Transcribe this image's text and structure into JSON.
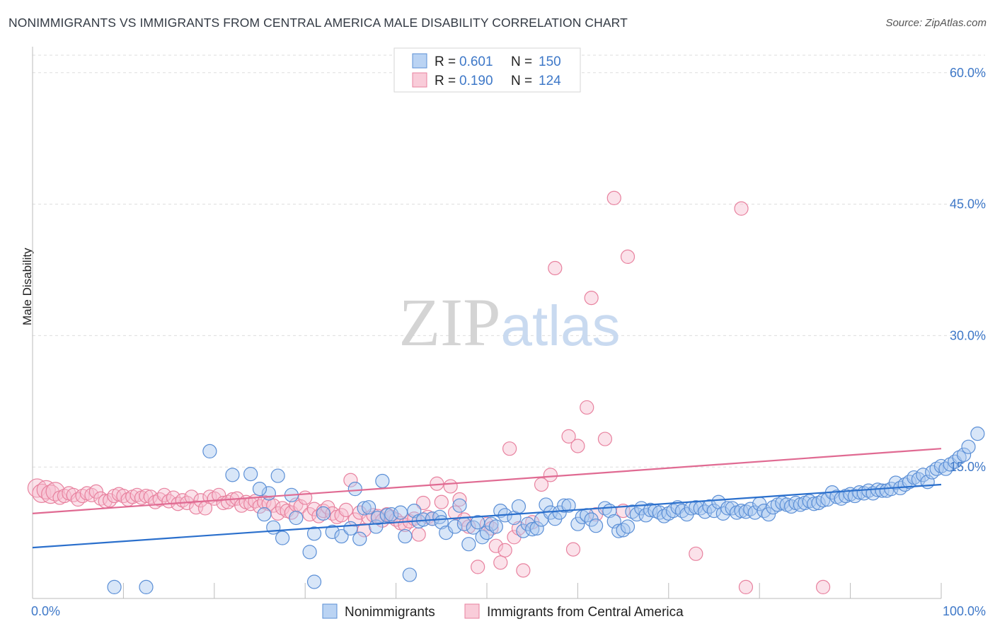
{
  "header": {
    "title": "NONIMMIGRANTS VS IMMIGRANTS FROM CENTRAL AMERICA MALE DISABILITY CORRELATION CHART",
    "source": "Source: ZipAtlas.com"
  },
  "chart_data": {
    "type": "scatter",
    "title": "NONIMMIGRANTS VS IMMIGRANTS FROM CENTRAL AMERICA MALE DISABILITY CORRELATION CHART",
    "xlabel": "",
    "ylabel": "Male Disability",
    "xlim": [
      0,
      100
    ],
    "ylim": [
      0,
      62
    ],
    "x_tick_labels": [
      "0.0%",
      "100.0%"
    ],
    "y_ticks": [
      15,
      30,
      45,
      60
    ],
    "y_tick_labels": [
      "15.0%",
      "30.0%",
      "45.0%",
      "60.0%"
    ],
    "grid": true,
    "legend_placement": "top-center",
    "watermark": "ZIPatlas",
    "colors": {
      "nonimmigrants_fill": "#a9c8f0",
      "nonimmigrants_stroke": "#5b8fd6",
      "nonimmigrants_line": "#2a6fcc",
      "immigrants_fill": "#f7bfd0",
      "immigrants_stroke": "#e8829f",
      "immigrants_line": "#e06a92",
      "tick_label": "#3e78c8",
      "grid": "#dddddd"
    },
    "stats": [
      {
        "r_label": "R =",
        "r_value": "0.601",
        "n_label": "N =",
        "n_value": "150"
      },
      {
        "r_label": "R =",
        "r_value": "0.190",
        "n_label": "N =",
        "n_value": "124"
      }
    ],
    "series": [
      {
        "name": "Nonimmigrants",
        "trend": {
          "x": [
            0,
            100
          ],
          "y": [
            5.8,
            13.0
          ]
        },
        "points": [
          [
            9,
            1.3
          ],
          [
            12.5,
            1.3
          ],
          [
            19.5,
            16.8
          ],
          [
            22,
            14.1
          ],
          [
            24,
            14.2
          ],
          [
            26,
            12.0
          ],
          [
            27,
            14.0
          ],
          [
            28.5,
            11.8
          ],
          [
            25,
            12.5
          ],
          [
            25.5,
            9.6
          ],
          [
            26.5,
            8.1
          ],
          [
            27.5,
            6.9
          ],
          [
            29,
            9.2
          ],
          [
            30.5,
            5.3
          ],
          [
            31,
            1.9
          ],
          [
            31,
            7.4
          ],
          [
            32,
            9.7
          ],
          [
            33,
            7.6
          ],
          [
            34,
            7.1
          ],
          [
            35,
            8.0
          ],
          [
            35.5,
            12.5
          ],
          [
            36,
            6.8
          ],
          [
            36.5,
            10.3
          ],
          [
            37,
            10.4
          ],
          [
            37.8,
            8.2
          ],
          [
            38,
            9.2
          ],
          [
            38.5,
            13.4
          ],
          [
            39,
            9.5
          ],
          [
            39.5,
            9.6
          ],
          [
            40.5,
            9.8
          ],
          [
            41,
            7.1
          ],
          [
            41.5,
            2.7
          ],
          [
            42,
            10.0
          ],
          [
            42.5,
            8.8
          ],
          [
            43,
            9.0
          ],
          [
            44,
            9.1
          ],
          [
            44.8,
            9.3
          ],
          [
            45,
            8.7
          ],
          [
            45.5,
            7.5
          ],
          [
            46.5,
            8.2
          ],
          [
            47,
            10.6
          ],
          [
            47.5,
            8.5
          ],
          [
            48,
            6.2
          ],
          [
            48.5,
            8.1
          ],
          [
            49,
            8.7
          ],
          [
            49.5,
            7.0
          ],
          [
            50,
            7.5
          ],
          [
            50.5,
            8.5
          ],
          [
            51,
            8.2
          ],
          [
            51.5,
            10.0
          ],
          [
            52,
            9.5
          ],
          [
            53,
            9.2
          ],
          [
            53.5,
            10.5
          ],
          [
            54,
            7.7
          ],
          [
            54.5,
            8.5
          ],
          [
            55,
            7.9
          ],
          [
            55.5,
            8.0
          ],
          [
            56,
            9.0
          ],
          [
            56.5,
            10.7
          ],
          [
            57,
            9.8
          ],
          [
            57.5,
            9.1
          ],
          [
            58,
            9.8
          ],
          [
            58.5,
            10.6
          ],
          [
            59,
            10.6
          ],
          [
            60,
            8.5
          ],
          [
            60.5,
            9.3
          ],
          [
            61,
            9.5
          ],
          [
            61.5,
            9.0
          ],
          [
            62,
            8.3
          ],
          [
            63,
            10.3
          ],
          [
            63.5,
            10.0
          ],
          [
            64,
            8.8
          ],
          [
            64.5,
            7.7
          ],
          [
            65,
            7.8
          ],
          [
            65.5,
            8.2
          ],
          [
            66,
            9.9
          ],
          [
            66.5,
            9.6
          ],
          [
            67,
            10.3
          ],
          [
            67.5,
            9.5
          ],
          [
            68,
            10.1
          ],
          [
            68.5,
            10.0
          ],
          [
            69,
            9.8
          ],
          [
            69.5,
            9.4
          ],
          [
            70,
            9.7
          ],
          [
            70.5,
            10.0
          ],
          [
            71,
            10.4
          ],
          [
            71.5,
            10.0
          ],
          [
            72,
            9.6
          ],
          [
            72.5,
            10.3
          ],
          [
            73,
            10.4
          ],
          [
            73.5,
            10.3
          ],
          [
            74,
            9.9
          ],
          [
            74.5,
            10.5
          ],
          [
            75,
            10.0
          ],
          [
            75.5,
            11.0
          ],
          [
            76,
            9.7
          ],
          [
            76.5,
            10.3
          ],
          [
            77,
            10.3
          ],
          [
            77.5,
            9.8
          ],
          [
            78,
            10.0
          ],
          [
            78.5,
            9.9
          ],
          [
            79,
            10.2
          ],
          [
            79.5,
            9.8
          ],
          [
            80,
            10.8
          ],
          [
            80.5,
            10.0
          ],
          [
            81,
            9.6
          ],
          [
            81.5,
            10.4
          ],
          [
            82,
            10.7
          ],
          [
            82.5,
            10.9
          ],
          [
            83,
            10.7
          ],
          [
            83.5,
            10.5
          ],
          [
            84,
            10.9
          ],
          [
            84.5,
            10.7
          ],
          [
            85,
            10.9
          ],
          [
            85.5,
            11.1
          ],
          [
            86,
            10.8
          ],
          [
            86.5,
            10.9
          ],
          [
            87,
            11.2
          ],
          [
            87.5,
            11.3
          ],
          [
            88,
            12.1
          ],
          [
            88.5,
            11.6
          ],
          [
            89,
            11.4
          ],
          [
            89.5,
            11.7
          ],
          [
            90,
            11.9
          ],
          [
            90.5,
            11.7
          ],
          [
            91,
            12.1
          ],
          [
            91.5,
            12.0
          ],
          [
            92,
            12.3
          ],
          [
            92.5,
            12.0
          ],
          [
            93,
            12.4
          ],
          [
            93.5,
            12.3
          ],
          [
            94,
            12.3
          ],
          [
            94.5,
            12.5
          ],
          [
            95,
            13.2
          ],
          [
            95.5,
            12.6
          ],
          [
            96,
            13.0
          ],
          [
            96.5,
            13.3
          ],
          [
            97,
            13.8
          ],
          [
            97.5,
            13.6
          ],
          [
            98,
            14.1
          ],
          [
            98.5,
            13.3
          ],
          [
            99,
            14.4
          ],
          [
            99.5,
            14.8
          ],
          [
            100,
            15.1
          ],
          [
            100.5,
            14.8
          ],
          [
            101,
            15.3
          ],
          [
            101.5,
            15.6
          ],
          [
            102,
            16.1
          ],
          [
            102.5,
            16.4
          ],
          [
            103,
            17.3
          ],
          [
            104,
            18.8
          ]
        ]
      },
      {
        "name": "Immigrants from Central America",
        "trend": {
          "x": [
            0,
            100
          ],
          "y": [
            9.7,
            17.1
          ]
        },
        "points": [
          [
            0.5,
            12.6
          ],
          [
            1,
            12.0
          ],
          [
            1.5,
            12.4
          ],
          [
            2,
            11.9
          ],
          [
            2.5,
            12.2
          ],
          [
            3,
            11.5
          ],
          [
            3.5,
            11.7
          ],
          [
            4,
            12.0
          ],
          [
            4.5,
            11.8
          ],
          [
            5,
            11.3
          ],
          [
            5.5,
            11.7
          ],
          [
            6,
            12.0
          ],
          [
            6.5,
            11.8
          ],
          [
            7,
            12.2
          ],
          [
            7.5,
            11.4
          ],
          [
            8,
            11.1
          ],
          [
            8.5,
            11.2
          ],
          [
            9,
            11.7
          ],
          [
            9.5,
            11.9
          ],
          [
            10,
            11.7
          ],
          [
            10.5,
            11.3
          ],
          [
            11,
            11.6
          ],
          [
            11.5,
            11.8
          ],
          [
            12,
            11.5
          ],
          [
            12.5,
            11.7
          ],
          [
            13,
            11.6
          ],
          [
            13.5,
            11.0
          ],
          [
            14,
            11.3
          ],
          [
            14.5,
            11.8
          ],
          [
            15,
            11.1
          ],
          [
            15.5,
            11.5
          ],
          [
            16,
            10.8
          ],
          [
            16.5,
            11.2
          ],
          [
            17,
            10.9
          ],
          [
            17.5,
            11.6
          ],
          [
            18,
            10.4
          ],
          [
            18.5,
            11.2
          ],
          [
            19,
            10.3
          ],
          [
            19.5,
            11.6
          ],
          [
            20,
            11.4
          ],
          [
            20.5,
            11.8
          ],
          [
            21,
            10.9
          ],
          [
            21.5,
            11.0
          ],
          [
            22,
            11.3
          ],
          [
            22.5,
            11.4
          ],
          [
            23,
            10.6
          ],
          [
            23.5,
            11.0
          ],
          [
            24,
            10.8
          ],
          [
            24.5,
            11.1
          ],
          [
            25,
            10.5
          ],
          [
            25.5,
            11.0
          ],
          [
            26,
            10.8
          ],
          [
            26.5,
            10.6
          ],
          [
            27,
            9.7
          ],
          [
            27.5,
            10.3
          ],
          [
            28,
            10.0
          ],
          [
            28.5,
            9.8
          ],
          [
            29,
            10.7
          ],
          [
            29.5,
            10.5
          ],
          [
            30,
            11.5
          ],
          [
            30.5,
            9.6
          ],
          [
            31,
            10.2
          ],
          [
            31.5,
            9.4
          ],
          [
            32,
            10.0
          ],
          [
            32.5,
            10.4
          ],
          [
            33,
            9.7
          ],
          [
            33.5,
            9.3
          ],
          [
            34,
            9.5
          ],
          [
            34.5,
            10.1
          ],
          [
            35,
            13.5
          ],
          [
            35.5,
            9.0
          ],
          [
            36,
            9.8
          ],
          [
            36.5,
            7.8
          ],
          [
            37,
            9.2
          ],
          [
            37.5,
            9.5
          ],
          [
            38,
            9.4
          ],
          [
            38.5,
            8.9
          ],
          [
            39,
            9.6
          ],
          [
            39.5,
            9.3
          ],
          [
            40,
            9.0
          ],
          [
            40.5,
            8.6
          ],
          [
            41,
            8.4
          ],
          [
            41.5,
            8.8
          ],
          [
            42,
            9.1
          ],
          [
            42.5,
            7.3
          ],
          [
            43,
            10.9
          ],
          [
            43.5,
            9.3
          ],
          [
            44,
            9.1
          ],
          [
            44.5,
            13.1
          ],
          [
            45,
            11.0
          ],
          [
            46,
            12.8
          ],
          [
            46.5,
            9.8
          ],
          [
            47,
            11.3
          ],
          [
            47.5,
            9.0
          ],
          [
            48,
            8.2
          ],
          [
            49,
            3.6
          ],
          [
            50,
            8.5
          ],
          [
            50.5,
            8.0
          ],
          [
            51,
            6.0
          ],
          [
            51.5,
            4.1
          ],
          [
            52,
            5.5
          ],
          [
            52.5,
            17.1
          ],
          [
            53,
            7.0
          ],
          [
            53.5,
            8.0
          ],
          [
            54,
            3.2
          ],
          [
            55,
            8.7
          ],
          [
            56,
            13.0
          ],
          [
            57,
            14.1
          ],
          [
            57.5,
            37.7
          ],
          [
            59,
            18.5
          ],
          [
            59.5,
            5.6
          ],
          [
            60,
            17.4
          ],
          [
            61,
            21.8
          ],
          [
            61.5,
            34.3
          ],
          [
            62,
            9.6
          ],
          [
            63,
            18.2
          ],
          [
            64,
            45.7
          ],
          [
            65,
            10.0
          ],
          [
            65.5,
            39.0
          ],
          [
            73,
            5.1
          ],
          [
            78,
            44.5
          ],
          [
            78.5,
            1.3
          ],
          [
            87,
            1.3
          ]
        ]
      }
    ]
  },
  "legend": {
    "items": [
      {
        "label": "Nonimmigrants"
      },
      {
        "label": "Immigrants from Central America"
      }
    ]
  }
}
